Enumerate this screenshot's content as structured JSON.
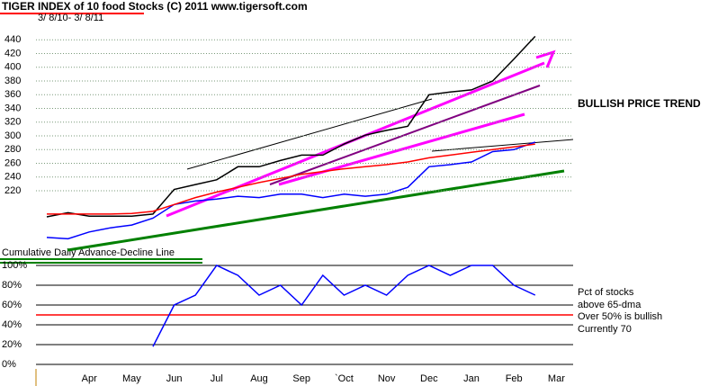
{
  "chart_data": [
    {
      "type": "line",
      "title": "TIGER INDEX of  10 food Stocks  (C) 2011   www.tigersoft.com",
      "subtitle": "3/ 8/10- 3/ 8/11",
      "annotations": [
        "BULLISH PRICE TREND",
        "Cumulative Daily Advance-Decline Line"
      ],
      "series": [
        {
          "color": "#000000",
          "values": [
            182,
            188,
            183,
            183,
            183,
            186,
            222,
            229,
            236,
            255,
            255,
            264,
            272,
            272,
            288,
            301,
            308,
            314,
            360,
            364,
            367,
            380,
            412,
            445,
            null
          ]
        },
        {
          "color": "#0000ff",
          "values": [
            152,
            150,
            160,
            166,
            170,
            180,
            200,
            205,
            208,
            212,
            210,
            215,
            215,
            210,
            215,
            212,
            215,
            225,
            255,
            258,
            262,
            277,
            280,
            291,
            null
          ]
        },
        {
          "color": "#ff0000",
          "values": [
            186,
            186,
            186,
            186,
            187,
            190,
            200,
            210,
            218,
            225,
            232,
            238,
            244,
            248,
            252,
            255,
            258,
            262,
            268,
            272,
            276,
            280,
            284,
            288,
            null
          ]
        }
      ],
      "ylim": [
        140,
        460
      ],
      "yticks": [
        220,
        240,
        260,
        280,
        300,
        320,
        340,
        360,
        380,
        400,
        420,
        440
      ],
      "grid": true
    },
    {
      "type": "line",
      "categories": [
        null,
        null,
        "Apr",
        null,
        "May",
        null,
        "Jun",
        null,
        "Jul",
        null,
        "Aug",
        null,
        "Sep",
        null,
        "`Oct",
        null,
        "Nov",
        null,
        "Dec",
        null,
        "Jan",
        null,
        "Feb",
        null,
        "Mar"
      ],
      "annotations": [
        "Pct of stocks",
        "above 65-dma",
        "Over 50% is bullish",
        "Currently  70"
      ],
      "series": [
        {
          "color": "#0000ff",
          "values": [
            null,
            null,
            null,
            null,
            null,
            18,
            60,
            70,
            100,
            90,
            70,
            80,
            60,
            90,
            70,
            80,
            70,
            90,
            100,
            90,
            100,
            100,
            80,
            70,
            null
          ]
        }
      ],
      "threshold": 50,
      "threshold_color": "#ff0000",
      "ylim": [
        0,
        100
      ],
      "yticks": [
        {
          "value": 0,
          "label": "0%"
        },
        {
          "value": 20,
          "label": "20%"
        },
        {
          "value": 40,
          "label": "40%"
        },
        {
          "value": 60,
          "label": "60%"
        },
        {
          "value": 80,
          "label": "80%"
        },
        {
          "value": 100,
          "label": "100%"
        }
      ]
    }
  ]
}
